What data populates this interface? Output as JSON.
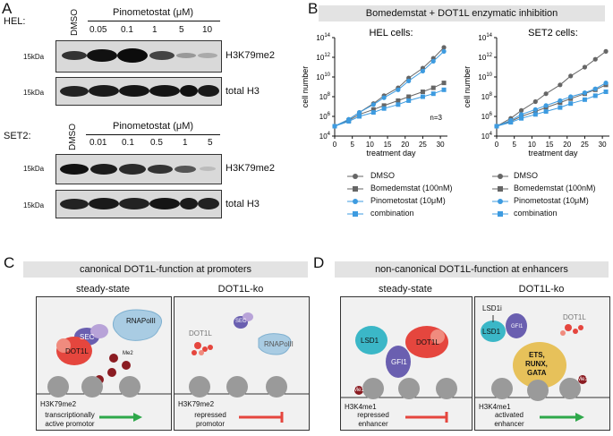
{
  "panelA": {
    "letter": "A",
    "hel": {
      "cell_label": "HEL:",
      "dmso_label": "DMSO",
      "drug_title": "Pinometostat (μM)",
      "concentrations": [
        "0.05",
        "0.1",
        "1",
        "5",
        "10"
      ],
      "kda_top": "15kDa",
      "kda_bottom": "15kDa",
      "blot_top_label": "H3K79me2",
      "blot_bottom_label": "total H3"
    },
    "set2": {
      "cell_label": "SET2:",
      "dmso_label": "DMSO",
      "drug_title": "Pinometostat (μM)",
      "concentrations": [
        "0.01",
        "0.1",
        "0.5",
        "1",
        "5"
      ],
      "kda_top": "15kDa",
      "kda_bottom": "15kDa",
      "blot_top_label": "H3K79me2",
      "blot_bottom_label": "total H3"
    }
  },
  "panelB": {
    "letter": "B",
    "banner": "Bomedemstat + DOT1L enzymatic inhibition",
    "legend": [
      "DMSO",
      "Bomedemstat (100nM)",
      "Pinometostat (10μM)",
      "combination"
    ]
  },
  "chart_data": [
    {
      "type": "line",
      "title": "HEL cells:",
      "xlabel": "treatment day",
      "ylabel": "cell number",
      "annotation": "n=3",
      "yscale": "log",
      "xlim": [
        0,
        32
      ],
      "ylim_exp": [
        4,
        14
      ],
      "xticks": [
        "0",
        "5",
        "10",
        "15",
        "20",
        "25",
        "30"
      ],
      "yticks": [
        "10^4",
        "10^6",
        "10^8",
        "10^10",
        "10^12",
        "10^14"
      ],
      "x": [
        0,
        4,
        7,
        11,
        14,
        18,
        21,
        25,
        28,
        31
      ],
      "series": [
        {
          "name": "DMSO",
          "log10_values": [
            5.0,
            5.7,
            6.4,
            7.3,
            8.1,
            8.9,
            9.9,
            10.9,
            11.9,
            13.0
          ]
        },
        {
          "name": "Bomedemstat (100nM)",
          "log10_values": [
            5.0,
            5.6,
            6.2,
            6.7,
            7.1,
            7.6,
            8.0,
            8.5,
            8.9,
            9.4
          ]
        },
        {
          "name": "Pinometostat (10μM)",
          "log10_values": [
            5.0,
            5.7,
            6.4,
            7.2,
            7.9,
            8.7,
            9.6,
            10.6,
            11.6,
            12.6
          ]
        },
        {
          "name": "combination",
          "log10_values": [
            5.0,
            5.5,
            6.0,
            6.4,
            6.8,
            7.2,
            7.6,
            8.0,
            8.3,
            8.7
          ]
        }
      ]
    },
    {
      "type": "line",
      "title": "SET2 cells:",
      "xlabel": "treatment day",
      "ylabel": "cell number",
      "yscale": "log",
      "xlim": [
        0,
        32
      ],
      "ylim_exp": [
        4,
        14
      ],
      "xticks": [
        "0",
        "5",
        "10",
        "15",
        "20",
        "25",
        "30"
      ],
      "yticks": [
        "10^4",
        "10^6",
        "10^8",
        "10^10",
        "10^12",
        "10^14"
      ],
      "x": [
        0,
        4,
        7,
        11,
        14,
        18,
        21,
        25,
        28,
        31
      ],
      "series": [
        {
          "name": "DMSO",
          "log10_values": [
            5.0,
            5.8,
            6.6,
            7.5,
            8.3,
            9.2,
            10.1,
            11.0,
            11.8,
            12.6
          ]
        },
        {
          "name": "Bomedemstat (100nM)",
          "log10_values": [
            5.0,
            5.5,
            6.0,
            6.5,
            6.9,
            7.4,
            7.8,
            8.3,
            8.7,
            9.2
          ]
        },
        {
          "name": "Pinometostat (10μM)",
          "log10_values": [
            5.0,
            5.6,
            6.2,
            6.7,
            7.1,
            7.6,
            8.0,
            8.4,
            8.8,
            9.4
          ]
        },
        {
          "name": "combination",
          "log10_values": [
            5.0,
            5.4,
            5.8,
            6.2,
            6.5,
            6.9,
            7.3,
            7.7,
            8.1,
            8.5
          ]
        }
      ]
    }
  ],
  "series_style": {
    "DMSO": {
      "color": "#666666",
      "marker": "circle"
    },
    "Bomedemstat (100nM)": {
      "color": "#666666",
      "marker": "square"
    },
    "Pinometostat (10μM)": {
      "color": "#3d9be0",
      "marker": "circle"
    },
    "combination": {
      "color": "#3d9be0",
      "marker": "square"
    }
  },
  "panelC": {
    "letter": "C",
    "banner": "canonical DOT1L-function at promoters",
    "left": {
      "title": "steady-state",
      "labels": {
        "rnapol": "RNAPolII",
        "sec": "SEC",
        "dot1l": "DOT1L",
        "me": "Me2"
      },
      "mark": "H3K79me2",
      "caption_line1": "transcriptionally",
      "caption_line2": "active promotor"
    },
    "right": {
      "title": "DOT1L-ko",
      "labels": {
        "dot1l": "DOT1L",
        "sec": "SEC",
        "rnapol": "RNAPolII"
      },
      "mark": "H3K79me2",
      "caption_line1": "repressed",
      "caption_line2": "promotor"
    }
  },
  "panelD": {
    "letter": "D",
    "banner": "non-canonical DOT1L-function at enhancers",
    "left": {
      "title": "steady-state",
      "labels": {
        "lsd1": "LSD1",
        "gfi1": "GFI1",
        "dot1l": "DOT1L",
        "me": "Me1"
      },
      "mark": "H3K4me1",
      "caption_line1": "repressed",
      "caption_line2": "enhancer"
    },
    "right": {
      "title": "DOT1L-ko",
      "labels": {
        "lsd1i": "LSD1i",
        "lsd1": "LSD1",
        "gfi1": "GFI1",
        "dot1l": "DOT1L",
        "tf1": "ETS,",
        "tf2": "RUNX,",
        "tf3": "GATA",
        "me": "Me1"
      },
      "mark": "H3K4me1",
      "caption_line1": "activated",
      "caption_line2": "enhancer"
    }
  },
  "colors": {
    "blue": "#3d9be0",
    "grey": "#666666",
    "red": "#e5463e",
    "green": "#2ea84a",
    "purple": "#6a5fb0",
    "cyan": "#3bb7c7",
    "gold": "#e7c15a",
    "pol": "#a9cce3"
  }
}
